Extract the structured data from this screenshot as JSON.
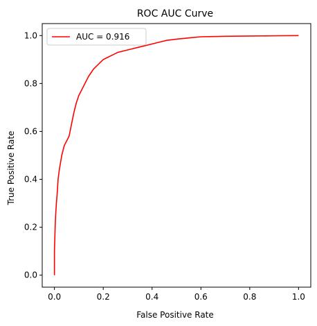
{
  "chart_data": {
    "type": "line",
    "title": "ROC AUC Curve",
    "xlabel": "False Positive Rate",
    "ylabel": "True Positive Rate",
    "xlim": [
      -0.05,
      1.05
    ],
    "ylim": [
      -0.05,
      1.05
    ],
    "xticks": [
      "0.0",
      "0.2",
      "0.4",
      "0.6",
      "0.8",
      "1.0"
    ],
    "yticks": [
      "0.0",
      "0.2",
      "0.4",
      "0.6",
      "0.8",
      "1.0"
    ],
    "grid": false,
    "legend_position": "top-left",
    "series": [
      {
        "name": "AUC = 0.916",
        "color": "#ff0000",
        "x": [
          0.0,
          0.0,
          0.003,
          0.005,
          0.008,
          0.012,
          0.015,
          0.02,
          0.025,
          0.03,
          0.04,
          0.05,
          0.06,
          0.07,
          0.08,
          0.09,
          0.1,
          0.12,
          0.14,
          0.16,
          0.18,
          0.2,
          0.22,
          0.24,
          0.26,
          0.28,
          0.3,
          0.32,
          0.34,
          0.36,
          0.38,
          0.4,
          0.42,
          0.44,
          0.46,
          0.5,
          0.55,
          0.6,
          0.65,
          0.7,
          0.8,
          0.9,
          1.0
        ],
        "y": [
          0.0,
          0.1,
          0.2,
          0.25,
          0.3,
          0.35,
          0.4,
          0.44,
          0.47,
          0.5,
          0.54,
          0.56,
          0.58,
          0.63,
          0.68,
          0.72,
          0.75,
          0.79,
          0.83,
          0.86,
          0.88,
          0.9,
          0.91,
          0.92,
          0.93,
          0.935,
          0.94,
          0.945,
          0.95,
          0.955,
          0.96,
          0.965,
          0.97,
          0.975,
          0.98,
          0.985,
          0.99,
          0.995,
          0.996,
          0.997,
          0.998,
          0.999,
          1.0
        ]
      }
    ]
  }
}
